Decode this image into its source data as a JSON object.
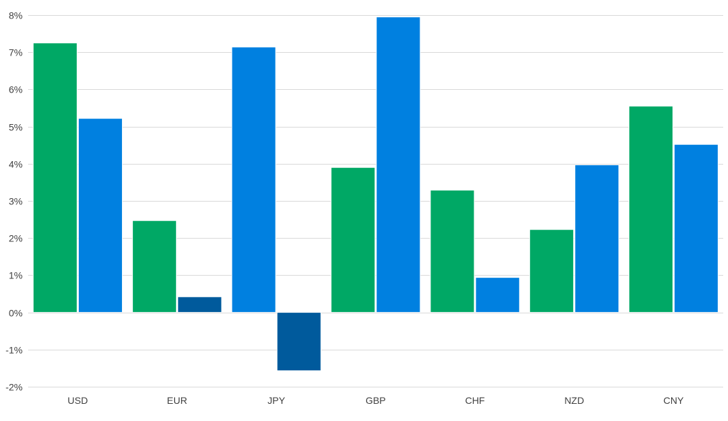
{
  "chart_data": {
    "type": "bar",
    "title": "",
    "xlabel": "",
    "ylabel": "",
    "ylim": [
      -2,
      8
    ],
    "ytick_step": 1,
    "ytick_suffix": "%",
    "grid": true,
    "legend": "none",
    "categories": [
      "USD",
      "EUR",
      "JPY",
      "GBP",
      "CHF",
      "NZD",
      "CNY"
    ],
    "series": [
      {
        "color": "#00a865",
        "values": [
          7.25,
          2.47,
          7.14,
          3.9,
          3.29,
          2.23,
          5.55
        ],
        "bar_colors": [
          "#00a865",
          "#00a865",
          "#0080e0",
          "#00a865",
          "#00a865",
          "#00a865",
          "#00a865"
        ]
      },
      {
        "color": "#0080e0",
        "values": [
          5.22,
          0.42,
          -1.57,
          7.95,
          0.94,
          3.97,
          4.52
        ],
        "bar_colors": [
          "#0080e0",
          "#005a9c",
          "#005a9c",
          "#0080e0",
          "#0080e0",
          "#0080e0",
          "#0080e0"
        ]
      }
    ]
  }
}
